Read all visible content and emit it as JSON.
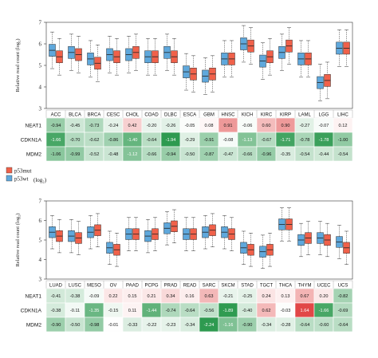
{
  "colors": {
    "mut": "#f0614a",
    "wt": "#5fa8dc",
    "neg_strong": "#2e9a50",
    "pos_strong": "#dc2a2a",
    "box_stroke": "#333333"
  },
  "legend": {
    "mut_label": "p53mut",
    "wt_label": "p53wt",
    "unit": "(log₂)"
  },
  "chart_data": [
    {
      "type": "boxplot",
      "ylabel": "Relative read count (log₂)",
      "ylim": [
        3,
        7
      ],
      "yticks": [
        3,
        4,
        5,
        6,
        7
      ],
      "categories": [
        "ACC",
        "BLCA",
        "BRCA",
        "CESC",
        "CHOL",
        "COAD",
        "DLBC",
        "ESCA",
        "GBM",
        "HNSC",
        "KICH",
        "KIRC",
        "KIRP",
        "LAML",
        "LGG",
        "LIHC"
      ],
      "series": [
        {
          "name": "p53mut",
          "median": [
            5.4,
            5.5,
            5.1,
            5.4,
            5.6,
            5.4,
            5.4,
            4.6,
            4.6,
            5.3,
            5.9,
            5.4,
            5.9,
            5.3,
            4.3,
            5.8
          ]
        },
        {
          "name": "p53wt",
          "median": [
            5.7,
            5.6,
            5.3,
            5.5,
            5.5,
            5.4,
            5.6,
            4.7,
            4.5,
            5.3,
            6.0,
            5.2,
            5.6,
            5.3,
            4.2,
            5.8
          ]
        }
      ],
      "table": {
        "rows": [
          "NEAT1",
          "CDKN1A",
          "MDM2"
        ],
        "values": [
          [
            "-0.94",
            "-0.45",
            "-0.73",
            "-0.24",
            "0.42",
            "-0.20",
            "-0.26",
            "-0.05",
            "0.08",
            "0.91",
            "-0.06",
            "0.60",
            "0.90",
            "-0.27",
            "-0.07",
            "0.12"
          ],
          [
            "-1.66",
            "-0.70",
            "-0.62",
            "-0.86",
            "-1.40",
            "-0.64",
            "-1.94",
            "-0.29",
            "-0.91",
            "-0.08",
            "-1.13",
            "-0.67",
            "-1.71",
            "-0.78",
            "-1.78",
            "-1.00"
          ],
          [
            "-1.06",
            "-0.99",
            "-0.52",
            "-0.48",
            "-1.12",
            "-0.66",
            "-0.94",
            "-0.50",
            "-0.87",
            "-0.47",
            "-0.66",
            "-0.96",
            "-0.35",
            "-0.54",
            "-0.44",
            "-0.54"
          ]
        ]
      }
    },
    {
      "type": "boxplot",
      "ylabel": "Relative read count (log₂)",
      "ylim": [
        3,
        7
      ],
      "yticks": [
        3,
        4,
        5,
        6,
        7
      ],
      "categories": [
        "LUAD",
        "LUSC",
        "MESO",
        "OV",
        "PAAD",
        "PCPG",
        "PRAD",
        "READ",
        "SARC",
        "SKCM",
        "STAD",
        "TGCT",
        "THCA",
        "THYM",
        "UCEC",
        "UCS"
      ],
      "series": [
        {
          "name": "p53mut",
          "median": [
            5.2,
            5.1,
            5.5,
            4.5,
            5.3,
            5.3,
            5.7,
            5.3,
            5.5,
            5.3,
            4.5,
            4.5,
            5.8,
            5.1,
            5.0,
            4.6
          ]
        },
        {
          "name": "p53wt",
          "median": [
            5.4,
            5.2,
            5.4,
            4.6,
            5.3,
            5.2,
            5.6,
            5.3,
            5.4,
            5.4,
            4.6,
            4.4,
            5.8,
            5.0,
            5.1,
            4.9
          ]
        }
      ],
      "table": {
        "rows": [
          "NEAT1",
          "CDKN1A",
          "MDM2"
        ],
        "values": [
          [
            "-0.41",
            "-0.38",
            "-0.09",
            "0.22",
            "0.15",
            "0.21",
            "0.34",
            "0.16",
            "0.63",
            "-0.21",
            "-0.25",
            "0.24",
            "0.13",
            "0.67",
            "0.20",
            "-0.82"
          ],
          [
            "-0.38",
            "-0.11",
            "-1.35",
            "-0.15",
            "0.11",
            "-1.44",
            "-0.74",
            "-0.64",
            "-0.56",
            "-1.89",
            "-0.40",
            "0.62",
            "-0.03",
            "1.64",
            "-1.66",
            "-0.69"
          ],
          [
            "-0.90",
            "-0.50",
            "-0.98",
            "-0.01",
            "-0.33",
            "-0.22",
            "-0.23",
            "-0.34",
            "-2.24",
            "-1.16",
            "-0.90",
            "-0.34",
            "-0.28",
            "-0.64",
            "-0.60",
            "-0.64"
          ]
        ]
      }
    }
  ]
}
